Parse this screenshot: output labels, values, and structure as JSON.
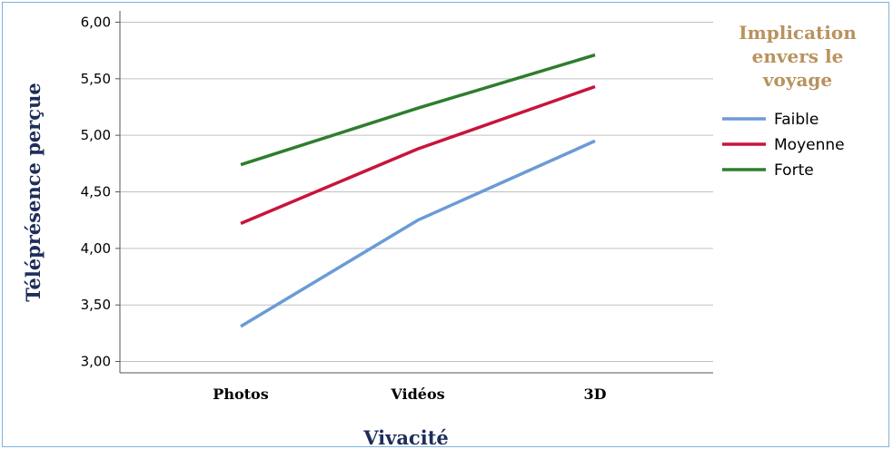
{
  "chart_data": {
    "type": "line",
    "categories": [
      "Photos",
      "Vidéos",
      "3D"
    ],
    "xlabel": "Vivacité",
    "ylabel": "Téléprésence perçue",
    "ylim": [
      2.9,
      6.1
    ],
    "y_ticks": [
      "3,00",
      "3,50",
      "4,00",
      "4,50",
      "5,00",
      "5,50",
      "6,00"
    ],
    "y_tick_values": [
      3.0,
      3.5,
      4.0,
      4.5,
      5.0,
      5.5,
      6.0
    ],
    "grid": "horizontal",
    "legend_title": [
      "Implication",
      "envers le",
      "voyage"
    ],
    "legend_position": "right",
    "series": [
      {
        "name": "Faible",
        "color": "#6b9bd6",
        "values": [
          3.31,
          4.25,
          4.95
        ]
      },
      {
        "name": "Moyenne",
        "color": "#c8143c",
        "values": [
          4.22,
          4.88,
          5.43
        ]
      },
      {
        "name": "Forte",
        "color": "#2e7d2e",
        "values": [
          4.74,
          5.24,
          5.71
        ]
      }
    ]
  }
}
